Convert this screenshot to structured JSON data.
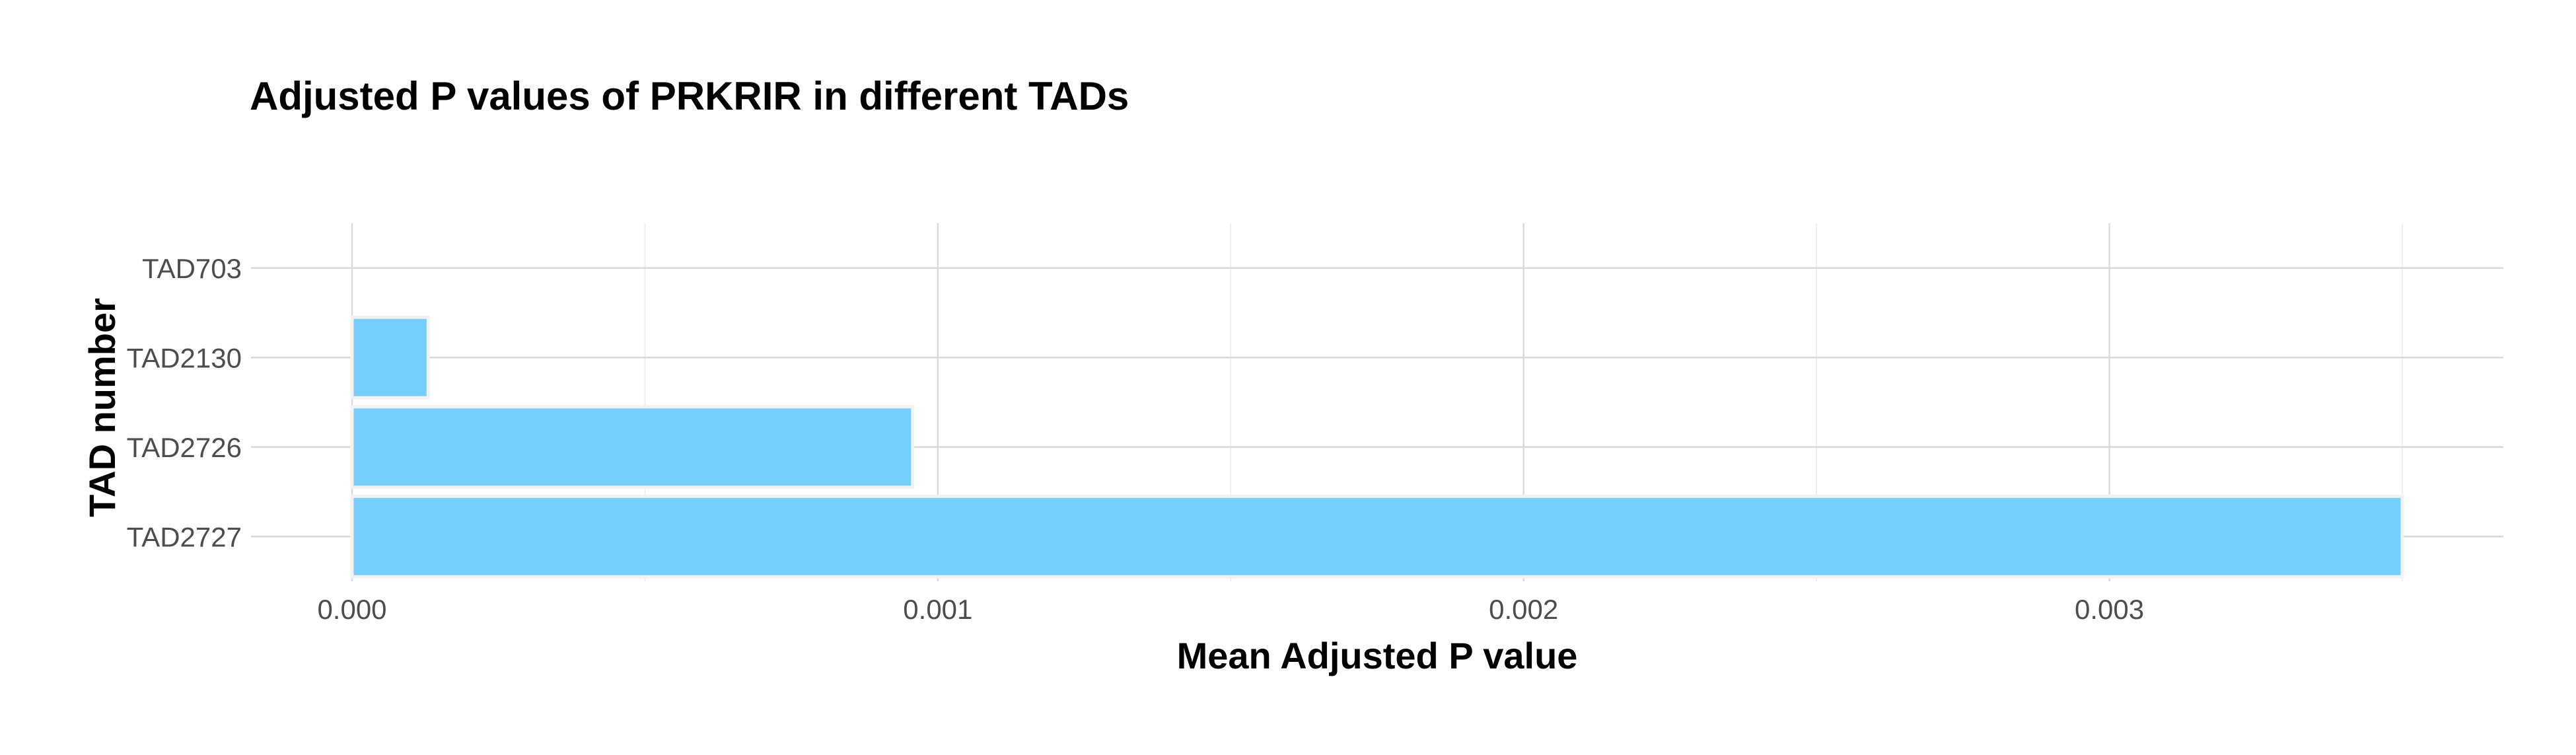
{
  "chart_data": {
    "type": "bar",
    "orientation": "horizontal",
    "title": "Adjusted P values of PRKRIR in different TADs",
    "xlabel": "Mean Adjusted P value",
    "ylabel": "TAD number",
    "categories": [
      "TAD2727",
      "TAD2726",
      "TAD2130",
      "TAD703"
    ],
    "values": [
      0.0035,
      0.000957,
      0.00013,
      0.0
    ],
    "xlim": [
      0.0,
      0.0036
    ],
    "x_ticks": [
      0.0,
      0.001,
      0.002,
      0.003
    ],
    "x_tick_labels": [
      "0.000",
      "0.001",
      "0.002",
      "0.003"
    ],
    "bar_color": "#75CEFC",
    "grid": true,
    "legend": "none"
  }
}
